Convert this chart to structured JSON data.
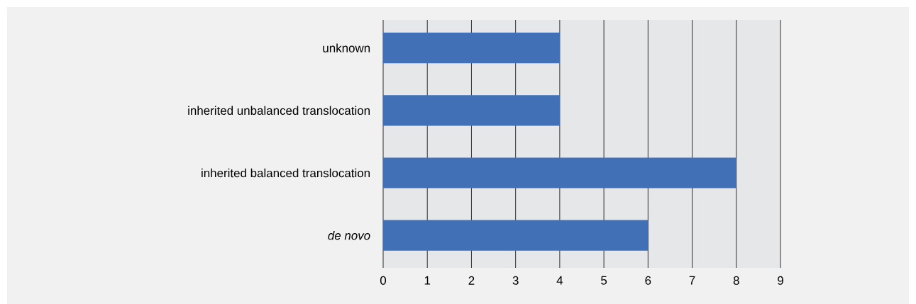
{
  "chart_data": {
    "type": "bar",
    "orientation": "horizontal",
    "categories": [
      "unknown",
      "inherited unbalanced translocation",
      "inherited balanced translocation",
      "*de novo*"
    ],
    "values": [
      4,
      4,
      8,
      6
    ],
    "color": "#4270b7",
    "xlim": [
      0,
      9
    ],
    "xticks": [
      0,
      1,
      2,
      3,
      4,
      5,
      6,
      7,
      8,
      9
    ],
    "grid": "x"
  }
}
